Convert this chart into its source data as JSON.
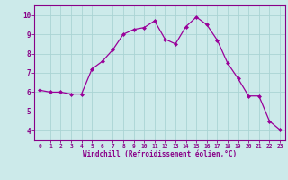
{
  "x": [
    0,
    1,
    2,
    3,
    4,
    5,
    6,
    7,
    8,
    9,
    10,
    11,
    12,
    13,
    14,
    15,
    16,
    17,
    18,
    19,
    20,
    21,
    22,
    23
  ],
  "y": [
    6.1,
    6.0,
    6.0,
    5.9,
    5.9,
    7.2,
    7.6,
    8.2,
    9.0,
    9.25,
    9.35,
    9.7,
    8.75,
    8.5,
    9.4,
    9.9,
    9.5,
    8.7,
    7.5,
    6.7,
    5.8,
    5.8,
    4.5,
    4.05
  ],
  "line_color": "#990099",
  "marker": "D",
  "marker_size": 2.0,
  "bg_color": "#cceaea",
  "grid_color": "#aad4d4",
  "spine_color": "#880088",
  "tick_color": "#880088",
  "xlabel": "Windchill (Refroidissement éolien,°C)",
  "xlabel_color": "#880088",
  "ylabel_ticks": [
    4,
    5,
    6,
    7,
    8,
    9,
    10
  ],
  "xtick_labels": [
    "0",
    "1",
    "2",
    "3",
    "4",
    "5",
    "6",
    "7",
    "8",
    "9",
    "10",
    "11",
    "12",
    "13",
    "14",
    "15",
    "16",
    "17",
    "18",
    "19",
    "20",
    "21",
    "22",
    "23"
  ],
  "ylim": [
    3.5,
    10.5
  ],
  "xlim": [
    -0.5,
    23.5
  ]
}
